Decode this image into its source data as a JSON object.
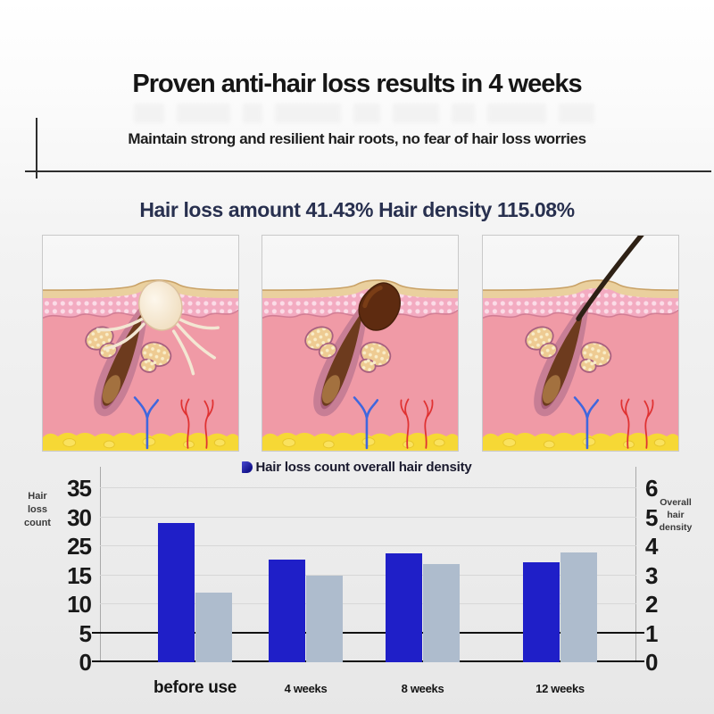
{
  "header": {
    "title": "Proven anti-hair loss results in 4 weeks",
    "subtitle": "Maintain strong and resilient hair roots, no fear of hair loss worries"
  },
  "results_heading": "Hair loss amount 41.43% Hair density 115.08%",
  "illustrations": [
    "clogged-follicle-with-cyst",
    "follicle-with-sebum-plug",
    "healthy-growing-hair"
  ],
  "colors": {
    "bar_blue": "#1f1fc8",
    "bar_gray": "#aebccd",
    "heading_navy": "#28304f",
    "legend_marker_blue": "#15158e"
  },
  "chart_data": {
    "type": "bar",
    "legend": "Hair loss count overall hair density",
    "legend_position": "top-center",
    "grid": true,
    "categories": [
      "before use",
      "4 weeks",
      "8 weeks",
      "12 weeks"
    ],
    "series": [
      {
        "name": "Hair loss count",
        "axis": "left",
        "color": "#1f1fc8",
        "values": [
          29,
          20.5,
          22.5,
          19.5
        ]
      },
      {
        "name": "overall hair density",
        "axis": "right",
        "color": "#aebccd",
        "values": [
          2.4,
          3.0,
          3.4,
          3.8
        ]
      }
    ],
    "left_axis": {
      "label": "Hair loss count",
      "ticks": [
        0,
        5,
        10,
        15,
        25,
        30,
        35
      ],
      "range_as_labeled": [
        0,
        35
      ]
    },
    "right_axis": {
      "label": "Overall hair density",
      "ticks": [
        0,
        1,
        2,
        3,
        4,
        5,
        6
      ],
      "range": [
        0,
        6
      ]
    }
  }
}
